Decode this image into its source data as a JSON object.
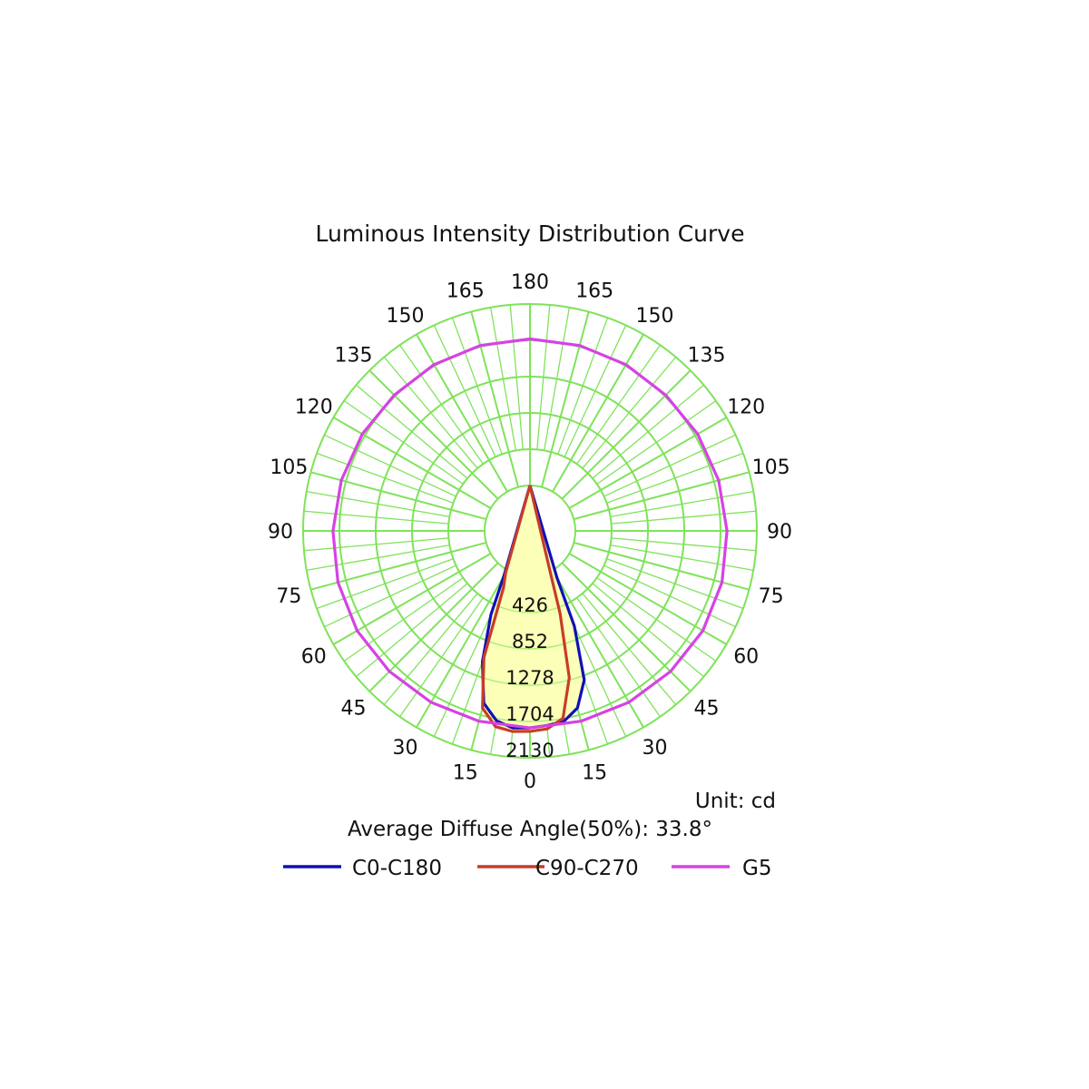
{
  "colors": {
    "grid": "#7fe35a",
    "background": "#ffffff",
    "beam_fill": "#fbffb8"
  },
  "chart_data": {
    "type": "polar",
    "title": "Luminous Intensity Distribution Curve",
    "unit_label": "Unit: cd",
    "info_label": "Average Diffuse Angle(50%): 33.8°",
    "angle_step": 15,
    "angle_labels_left": [
      "0",
      "15",
      "30",
      "45",
      "60",
      "75",
      "90",
      "105",
      "120",
      "135",
      "150",
      "165",
      "180"
    ],
    "angle_labels_right": [
      "15",
      "30",
      "45",
      "60",
      "75",
      "90",
      "105",
      "120",
      "135",
      "150",
      "165"
    ],
    "radial_ticks": [
      426,
      852,
      1278,
      1704,
      2130
    ],
    "radial_tick_labels": [
      "426",
      "852",
      "1278",
      "1704",
      "2130"
    ],
    "radial_max": 2130,
    "grid": true,
    "legend_position": "bottom",
    "series": [
      {
        "name": "C0-C180",
        "color": "#1010b8",
        "angles": [
          -180,
          -30,
          -25,
          -20,
          -15,
          -10,
          -5,
          0,
          5,
          10,
          15,
          20,
          25,
          30,
          180
        ],
        "values": [
          0,
          80,
          550,
          1100,
          1560,
          1730,
          1790,
          1780,
          1760,
          1740,
          1620,
          1330,
          700,
          100,
          0
        ]
      },
      {
        "name": "C90-C270",
        "color": "#c83c28",
        "angles": [
          -180,
          -30,
          -25,
          -20,
          -15,
          -10,
          -5,
          0,
          5,
          10,
          15,
          20,
          25,
          180
        ],
        "values": [
          0,
          40,
          200,
          1050,
          1620,
          1800,
          1830,
          1820,
          1800,
          1700,
          1250,
          500,
          60,
          0
        ]
      },
      {
        "name": "G5",
        "color": "#d642e4",
        "angles": [
          0,
          15,
          30,
          45,
          60,
          75,
          90,
          105,
          120,
          135,
          150,
          165,
          180,
          -165,
          -150,
          -135,
          -120,
          -105,
          -90,
          -75,
          -60,
          -45,
          -30,
          -15
        ],
        "values": [
          1780,
          1780,
          1790,
          1800,
          1810,
          1800,
          1780,
          1760,
          1740,
          1720,
          1720,
          1720,
          1720,
          1720,
          1720,
          1720,
          1740,
          1760,
          1780,
          1800,
          1810,
          1800,
          1790,
          1780
        ]
      }
    ]
  }
}
